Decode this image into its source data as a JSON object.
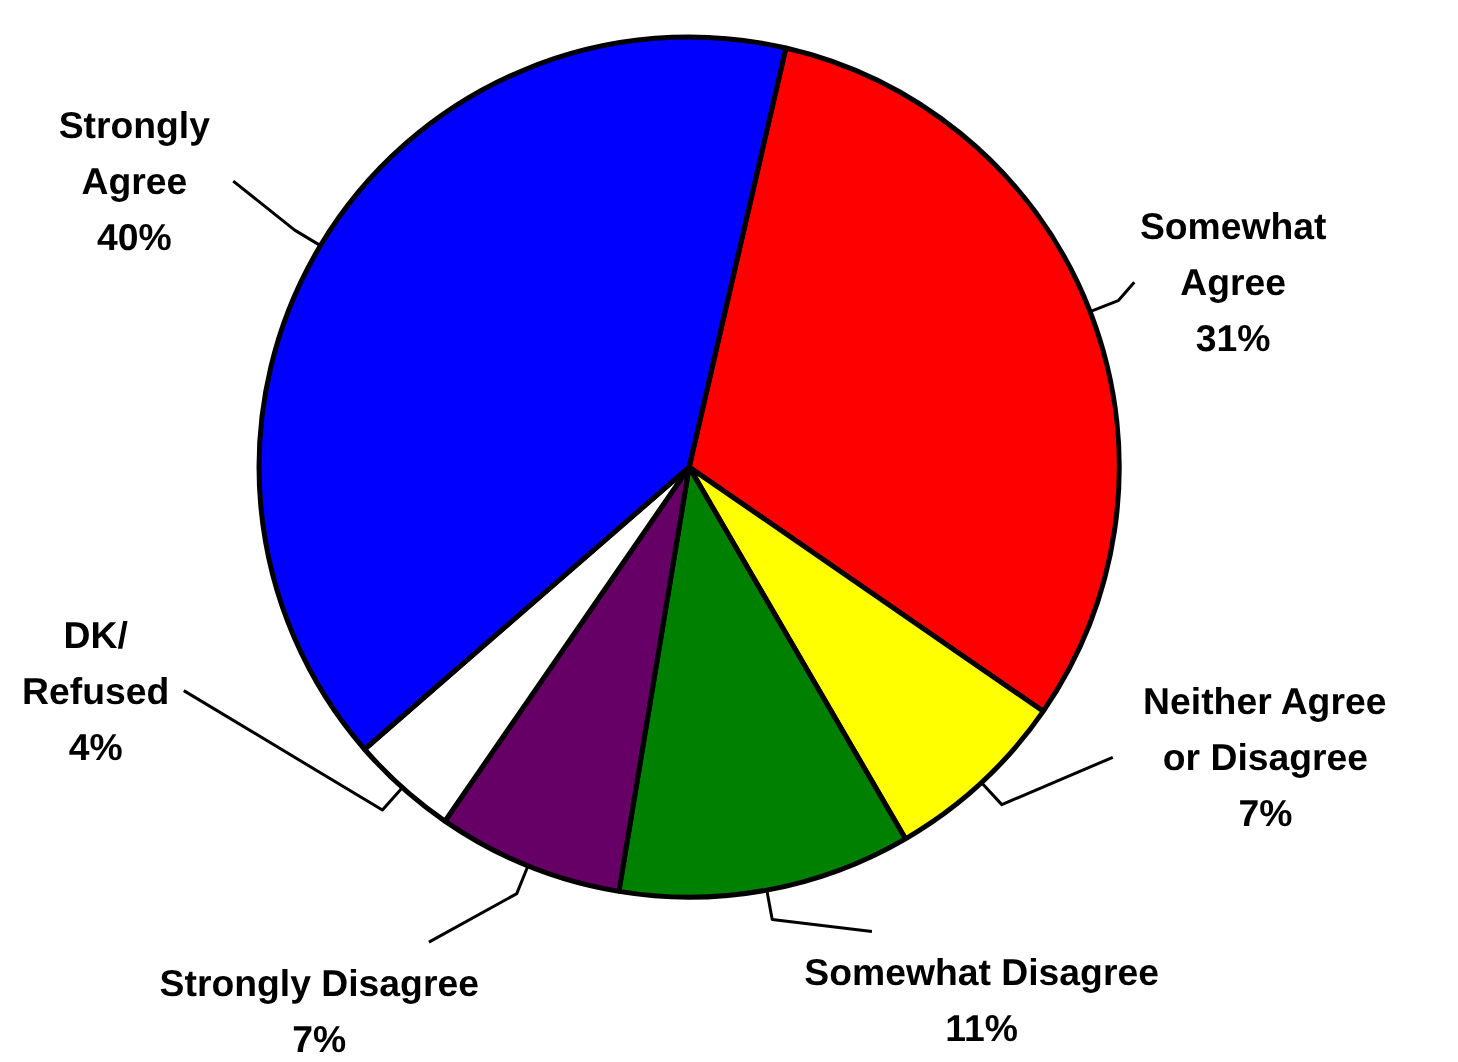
{
  "chart_data": {
    "type": "pie",
    "categories": [
      "Somewhat Agree",
      "Neither Agree or Disagree",
      "Somewhat Disagree",
      "Strongly Disagree",
      "DK/ Refused",
      "Strongly Agree"
    ],
    "values": [
      31,
      7,
      11,
      7,
      4,
      40
    ],
    "colors": [
      "#ff0000",
      "#ffff00",
      "#008000",
      "#660066",
      "#ffffff",
      "#0000ff"
    ],
    "value_labels": [
      "31%",
      "7%",
      "11%",
      "7%",
      "4%",
      "40%"
    ]
  }
}
